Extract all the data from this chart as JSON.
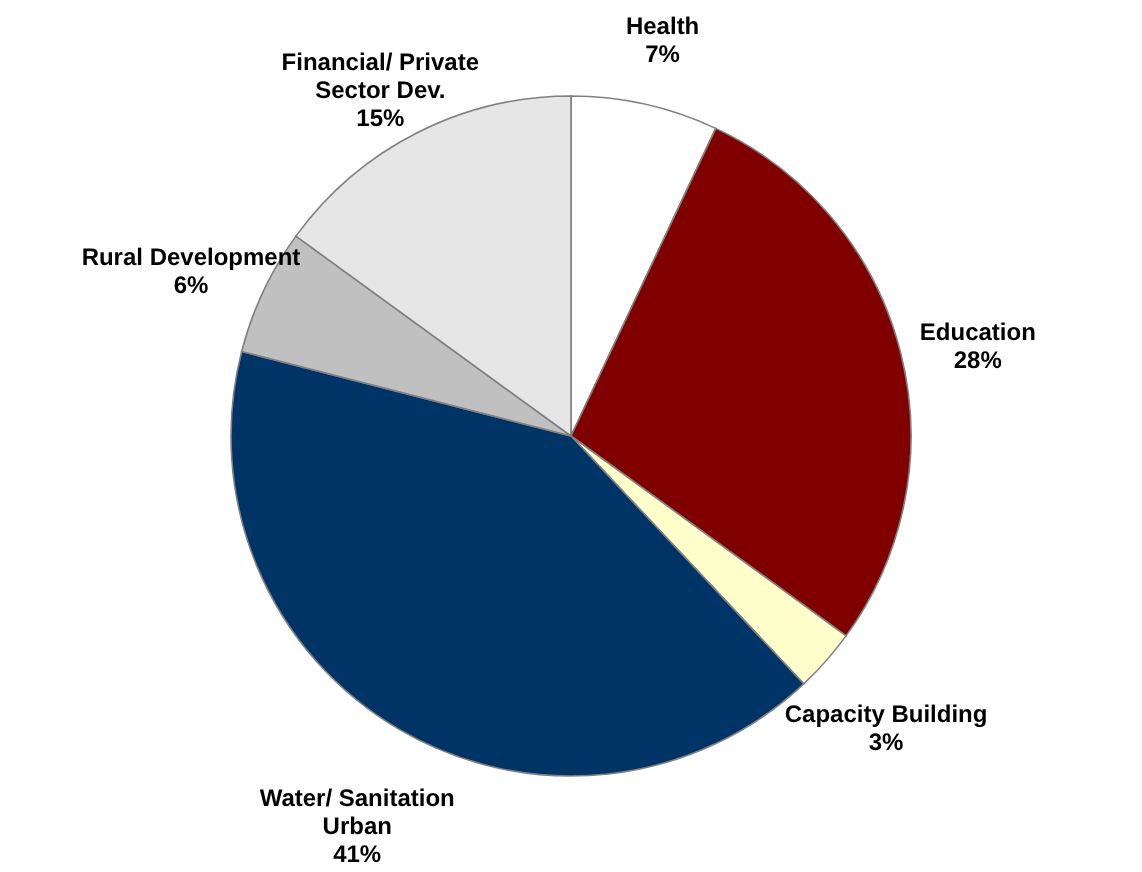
{
  "chart_data": {
    "type": "pie",
    "categories": [
      "Health",
      "Education",
      "Capacity Building",
      "Water/ Sanitation Urban",
      "Rural Development",
      "Financial/ Private Sector Dev."
    ],
    "values": [
      7,
      28,
      3,
      41,
      6,
      15
    ],
    "value_labels": [
      "7%",
      "28%",
      "3%",
      "41%",
      "6%",
      "15%"
    ],
    "colors": [
      "#ffffff",
      "#800000",
      "#ffffcc",
      "#003366",
      "#c0c0c0",
      "#e6e6e6"
    ]
  }
}
